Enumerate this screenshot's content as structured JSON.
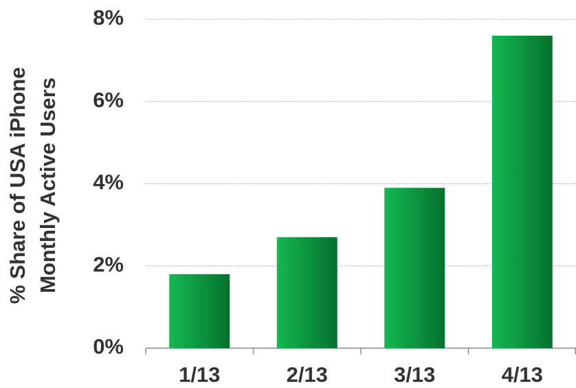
{
  "chart_data": {
    "type": "bar",
    "ylabel": [
      "% Share of USA iPhone",
      "Monthly Active Users"
    ],
    "categories": [
      "1/13",
      "2/13",
      "3/13",
      "4/13"
    ],
    "values": [
      1.8,
      2.7,
      3.9,
      7.6
    ],
    "gradient": [
      "#14b851",
      "#05712e"
    ],
    "ylim": [
      0,
      8
    ],
    "yticks": [
      {
        "value": 0,
        "label": "0%"
      },
      {
        "value": 2,
        "label": "2%"
      },
      {
        "value": 4,
        "label": "4%"
      },
      {
        "value": 6,
        "label": "6%"
      },
      {
        "value": 8,
        "label": "8%"
      }
    ],
    "grid": true
  }
}
